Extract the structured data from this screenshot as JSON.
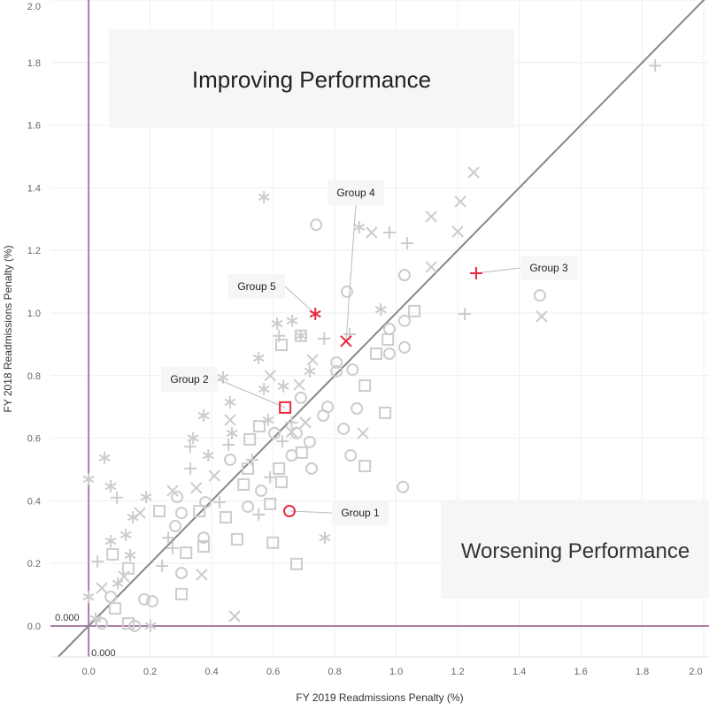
{
  "chart_data": {
    "type": "scatter",
    "xlabel": "FY 2019 Readmissions Penalty (%)",
    "ylabel": "FY 2018 Readmissions Penalty (%)",
    "xlim": [
      -0.124,
      2.017
    ],
    "ylim": [
      -0.099,
      2.0
    ],
    "xticks": [
      "0.0",
      "0.2",
      "0.4",
      "0.6",
      "0.8",
      "1.0",
      "1.2",
      "1.4",
      "1.6",
      "1.8",
      "2.0"
    ],
    "yticks": [
      "0.0",
      "0.2",
      "0.4",
      "0.6",
      "0.8",
      "1.0",
      "1.2",
      "1.4",
      "1.6",
      "1.8",
      "2.0"
    ],
    "grid": true,
    "reference_lines": {
      "x_label": "0.000",
      "y_label": "0.000",
      "diagonal": "y = x"
    },
    "annotations": {
      "top_left": "Improving Performance",
      "bottom_right": "Worsening Performance"
    },
    "colors": {
      "points": "#cccccc",
      "highlight": "#e8283c",
      "reference": "#a97ea9",
      "diagonal": "#888888",
      "grid": "#eeeeee"
    },
    "highlighted": [
      {
        "label": "Group 1",
        "shape": "circle",
        "x": 0.653,
        "y": 0.367
      },
      {
        "label": "Group 2",
        "shape": "square",
        "x": 0.639,
        "y": 0.698
      },
      {
        "label": "Group 3",
        "shape": "plus",
        "x": 1.26,
        "y": 1.127
      },
      {
        "label": "Group 4",
        "shape": "x",
        "x": 0.837,
        "y": 0.91
      },
      {
        "label": "Group 5",
        "shape": "asterisk",
        "x": 0.737,
        "y": 0.997
      }
    ],
    "points": [
      [
        "p",
        1.842,
        1.79
      ],
      [
        "x",
        1.252,
        1.449
      ],
      [
        "a",
        0.57,
        1.37
      ],
      [
        "c",
        0.74,
        1.282
      ],
      [
        "x",
        1.209,
        1.356
      ],
      [
        "x",
        1.114,
        1.308
      ],
      [
        "x",
        1.2,
        1.26
      ],
      [
        "p",
        1.036,
        1.223
      ],
      [
        "x",
        1.114,
        1.147
      ],
      [
        "c",
        1.027,
        1.121
      ],
      [
        "a",
        0.88,
        1.274
      ],
      [
        "x",
        0.92,
        1.257
      ],
      [
        "p",
        0.978,
        1.257
      ],
      [
        "c",
        1.467,
        1.056
      ],
      [
        "x",
        1.473,
        0.989
      ],
      [
        "p",
        1.223,
        0.997
      ],
      [
        "c",
        0.84,
        1.068
      ],
      [
        "s",
        1.059,
        1.006
      ],
      [
        "a",
        0.95,
        1.011
      ],
      [
        "c",
        1.027,
        0.975
      ],
      [
        "c",
        0.978,
        0.949
      ],
      [
        "c",
        1.027,
        0.89
      ],
      [
        "c",
        0.978,
        0.87
      ],
      [
        "s",
        0.935,
        0.87
      ],
      [
        "s",
        0.973,
        0.915
      ],
      [
        "p",
        0.849,
        0.932
      ],
      [
        "a",
        0.69,
        0.927
      ],
      [
        "a",
        0.613,
        0.966
      ],
      [
        "p",
        0.619,
        0.927
      ],
      [
        "s",
        0.69,
        0.927
      ],
      [
        "a",
        0.662,
        0.975
      ],
      [
        "s",
        0.627,
        0.898
      ],
      [
        "p",
        0.766,
        0.918
      ],
      [
        "a",
        0.553,
        0.856
      ],
      [
        "x",
        0.728,
        0.85
      ],
      [
        "x",
        0.59,
        0.8
      ],
      [
        "a",
        0.719,
        0.814
      ],
      [
        "x",
        0.685,
        0.771
      ],
      [
        "a",
        0.633,
        0.766
      ],
      [
        "a",
        0.57,
        0.757
      ],
      [
        "a",
        0.437,
        0.794
      ],
      [
        "a",
        0.46,
        0.715
      ],
      [
        "a",
        0.374,
        0.672
      ],
      [
        "a",
        0.34,
        0.6
      ],
      [
        "p",
        0.33,
        0.573
      ],
      [
        "a",
        0.389,
        0.545
      ],
      [
        "p",
        0.331,
        0.503
      ],
      [
        "a",
        0.466,
        0.616
      ],
      [
        "p",
        0.455,
        0.579
      ],
      [
        "x",
        0.46,
        0.658
      ],
      [
        "c",
        0.806,
        0.842
      ],
      [
        "c",
        0.806,
        0.814
      ],
      [
        "c",
        0.858,
        0.819
      ],
      [
        "s",
        0.898,
        0.768
      ],
      [
        "c",
        0.872,
        0.695
      ],
      [
        "c",
        0.829,
        0.63
      ],
      [
        "x",
        0.892,
        0.616
      ],
      [
        "s",
        0.964,
        0.681
      ],
      [
        "s",
        0.898,
        0.511
      ],
      [
        "c",
        0.852,
        0.545
      ],
      [
        "c",
        1.022,
        0.444
      ],
      [
        "c",
        0.69,
        0.729
      ],
      [
        "c",
        0.763,
        0.672
      ],
      [
        "c",
        0.777,
        0.7
      ],
      [
        "c",
        0.725,
        0.503
      ],
      [
        "x",
        0.705,
        0.65
      ],
      [
        "s",
        0.693,
        0.554
      ],
      [
        "c",
        0.719,
        0.588
      ],
      [
        "c",
        0.676,
        0.616
      ],
      [
        "c",
        0.604,
        0.616
      ],
      [
        "s",
        0.619,
        0.503
      ],
      [
        "s",
        0.627,
        0.46
      ],
      [
        "p",
        0.59,
        0.475
      ],
      [
        "c",
        0.561,
        0.432
      ],
      [
        "s",
        0.518,
        0.503
      ],
      [
        "s",
        0.555,
        0.638
      ],
      [
        "p",
        0.532,
        0.531
      ],
      [
        "s",
        0.504,
        0.452
      ],
      [
        "p",
        0.426,
        0.395
      ],
      [
        "c",
        0.38,
        0.395
      ],
      [
        "s",
        0.36,
        0.367
      ],
      [
        "x",
        0.35,
        0.441
      ],
      [
        "c",
        0.518,
        0.381
      ],
      [
        "s",
        0.59,
        0.39
      ],
      [
        "p",
        0.553,
        0.356
      ],
      [
        "s",
        0.483,
        0.277
      ],
      [
        "s",
        0.599,
        0.266
      ],
      [
        "a",
        0.768,
        0.282
      ],
      [
        "s",
        0.676,
        0.198
      ],
      [
        "x",
        0.475,
        0.031
      ],
      [
        "c",
        0.288,
        0.412
      ],
      [
        "a",
        0.187,
        0.412
      ],
      [
        "a",
        0.052,
        0.537
      ],
      [
        "a",
        0,
        0.469
      ],
      [
        "a",
        0.072,
        0.446
      ],
      [
        "p",
        0.092,
        0.41
      ],
      [
        "s",
        0.23,
        0.367
      ],
      [
        "c",
        0.302,
        0.361
      ],
      [
        "x",
        0.273,
        0.432
      ],
      [
        "a",
        0.144,
        0.347
      ],
      [
        "x",
        0.167,
        0.361
      ],
      [
        "a",
        0.121,
        0.291
      ],
      [
        "p",
        0.259,
        0.282
      ],
      [
        "s",
        0.078,
        0.229
      ],
      [
        "a",
        0.072,
        0.271
      ],
      [
        "p",
        0.029,
        0.206
      ],
      [
        "a",
        0.135,
        0.226
      ],
      [
        "s",
        0.129,
        0.184
      ],
      [
        "c",
        0.374,
        0.282
      ],
      [
        "s",
        0.317,
        0.234
      ],
      [
        "p",
        0.239,
        0.192
      ],
      [
        "s",
        0.374,
        0.254
      ],
      [
        "x",
        0.368,
        0.164
      ],
      [
        "c",
        0.302,
        0.169
      ],
      [
        "s",
        0.302,
        0.102
      ],
      [
        "c",
        0.181,
        0.085
      ],
      [
        "c",
        0.207,
        0.079
      ],
      [
        "x",
        0.043,
        0.121
      ],
      [
        "c",
        0.072,
        0.093
      ],
      [
        "s",
        0.086,
        0.056
      ],
      [
        "c",
        0.043,
        0.008
      ],
      [
        "a",
        0.023,
        0.023
      ],
      [
        "a",
        0.201,
        0
      ],
      [
        "c",
        0.15,
        0
      ],
      [
        "s",
        0.129,
        0.008
      ],
      [
        "a",
        0.095,
        0.136
      ],
      [
        "x",
        0.115,
        0.158
      ],
      [
        "a",
        0,
        0.093
      ],
      [
        "c",
        0.282,
        0.319
      ],
      [
        "p",
        0.273,
        0.249
      ],
      [
        "s",
        0.446,
        0.347
      ],
      [
        "x",
        0.409,
        0.48
      ],
      [
        "c",
        0.46,
        0.531
      ],
      [
        "s",
        0.524,
        0.596
      ],
      [
        "a",
        0.584,
        0.658
      ],
      [
        "x",
        0.66,
        0.62
      ],
      [
        "p",
        0.66,
        0.65
      ],
      [
        "c",
        0.66,
        0.545
      ],
      [
        "p",
        0.63,
        0.59
      ]
    ]
  }
}
